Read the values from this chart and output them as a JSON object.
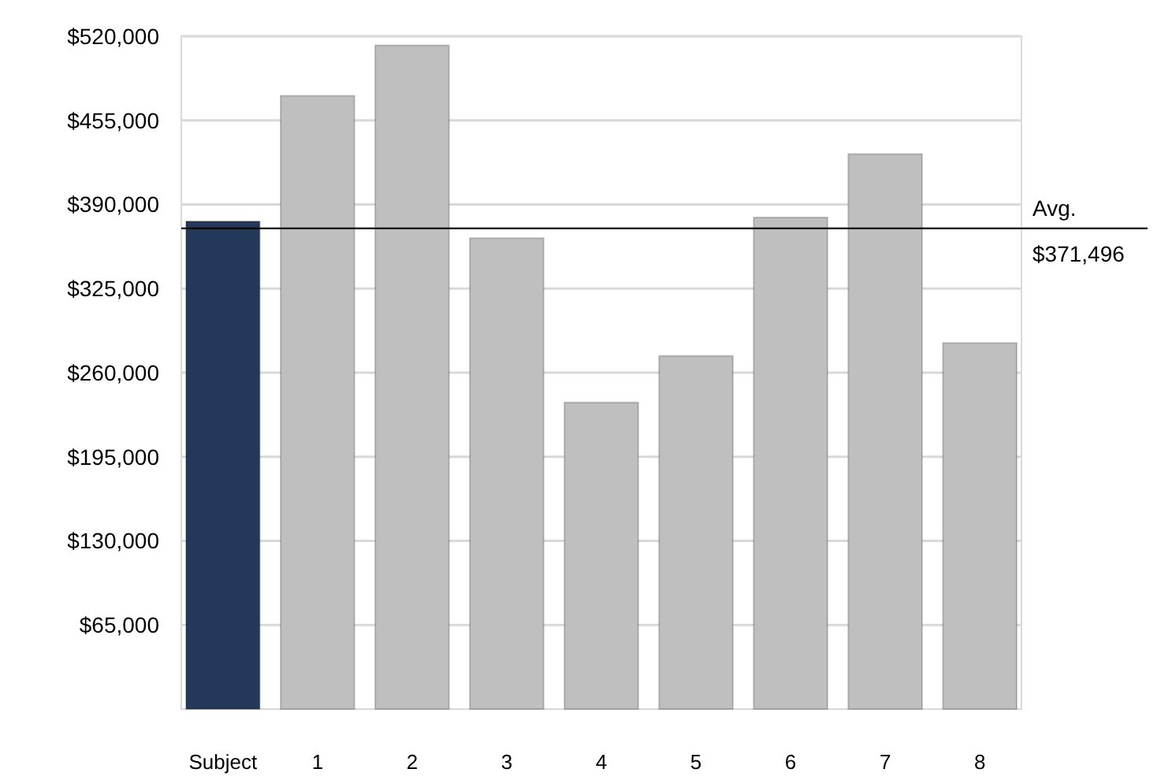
{
  "chart_data": {
    "type": "bar",
    "categories": [
      "Subject",
      "1",
      "2",
      "3",
      "4",
      "5",
      "6",
      "7",
      "8"
    ],
    "values": [
      377000,
      474000,
      513000,
      364000,
      237000,
      273000,
      380000,
      429000,
      283000
    ],
    "colors": [
      "#24395a",
      "#bfbfbf",
      "#bfbfbf",
      "#bfbfbf",
      "#bfbfbf",
      "#bfbfbf",
      "#bfbfbf",
      "#bfbfbf",
      "#bfbfbf"
    ],
    "ylim": [
      0,
      520000
    ],
    "yticks": [
      {
        "value": 65000,
        "label": "$65,000"
      },
      {
        "value": 130000,
        "label": "$130,000"
      },
      {
        "value": 195000,
        "label": "$195,000"
      },
      {
        "value": 260000,
        "label": "$260,000"
      },
      {
        "value": 325000,
        "label": "$325,000"
      },
      {
        "value": 390000,
        "label": "$390,000"
      },
      {
        "value": 455000,
        "label": "$455,000"
      },
      {
        "value": 520000,
        "label": "$520,000"
      }
    ],
    "grid": "y",
    "ref_lines": [
      {
        "axis": "y",
        "value": 371496,
        "label": "Avg.\n$371,496",
        "color": "#000000"
      }
    ]
  }
}
